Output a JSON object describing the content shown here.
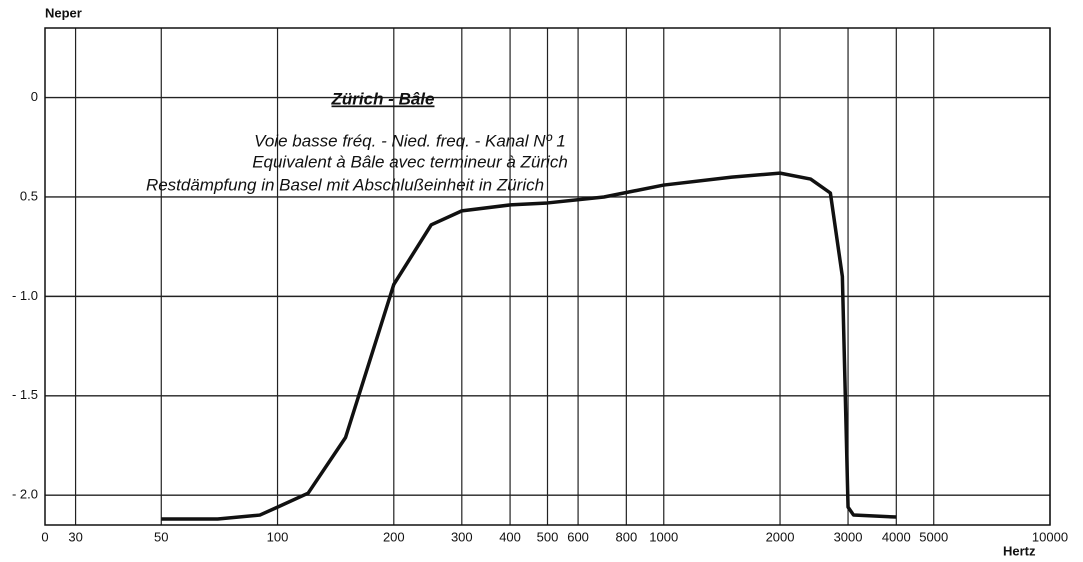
{
  "chart_data": {
    "type": "line",
    "title": "Zürich - Bâle",
    "subtitles": [
      "Voie basse fréq. - Nied. freq. - Kanal Nº 1",
      "Equivalent à Bâle avec termineur à Zürich",
      "Restdämpfung in Basel mit Abschlußeinheit in Zürich"
    ],
    "y_label": "Neper",
    "x_label": "Hertz",
    "x_origin_label": "0",
    "x": [
      50,
      70,
      90,
      100,
      120,
      150,
      200,
      250,
      300,
      400,
      500,
      700,
      1000,
      1500,
      2000,
      2400,
      2700,
      2900,
      3000,
      3100,
      4000
    ],
    "series": [
      {
        "name": "Restdämpfung",
        "color": "#111111",
        "values": [
          -2.12,
          -2.12,
          -2.1,
          -2.06,
          -1.99,
          -1.71,
          -0.94,
          -0.64,
          -0.57,
          -0.54,
          -0.53,
          -0.5,
          -0.44,
          -0.4,
          -0.38,
          -0.41,
          -0.48,
          -0.9,
          -2.06,
          -2.1,
          -2.11
        ]
      }
    ],
    "xscale": "log",
    "xlim": [
      25,
      10000
    ],
    "xticks": [
      30,
      50,
      100,
      200,
      300,
      400,
      500,
      600,
      800,
      1000,
      2000,
      3000,
      4000,
      5000,
      10000
    ],
    "ylim": [
      -2.15,
      0.35
    ],
    "yticks": [
      0,
      {
        "value": -0.5,
        "label": "0.5"
      },
      {
        "value": -1.0,
        "label": "- 1.0"
      },
      {
        "value": -1.5,
        "label": "- 1.5"
      },
      {
        "value": -2.0,
        "label": "- 2.0"
      }
    ],
    "grid": true
  }
}
